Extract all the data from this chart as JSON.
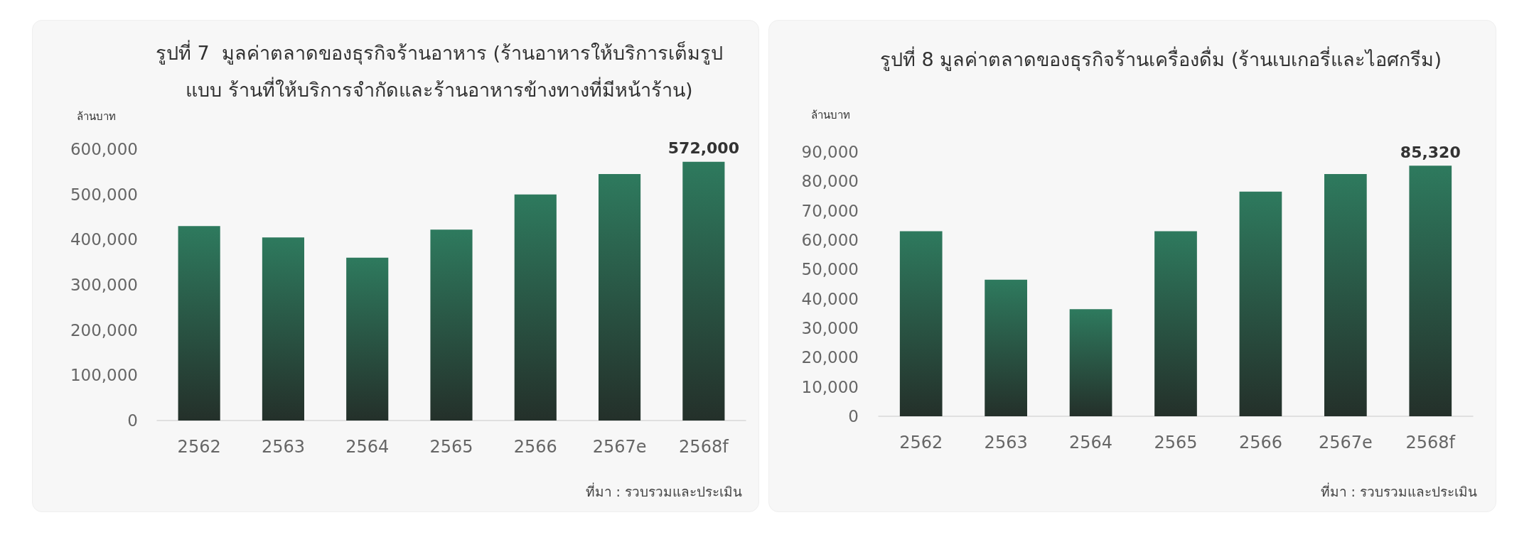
{
  "chart_data": [
    {
      "type": "bar",
      "title": "รูปที่ 7  มูลค่าตลาดของธุรกิจร้านอาหาร (ร้านอาหารให้บริการเต็มรูปแบบ ร้านที่ให้บริการจำกัดและร้านอาหารข้างทางที่มีหน้าร้าน)",
      "ylabel": "ล้านบาท",
      "categories": [
        "2562",
        "2563",
        "2564",
        "2565",
        "2566",
        "2567e",
        "2568f"
      ],
      "values": [
        430000,
        405000,
        360000,
        422000,
        500000,
        545000,
        572000
      ],
      "value_labels": [
        null,
        null,
        null,
        null,
        null,
        null,
        "572,000"
      ],
      "color": "#2e7a5e",
      "ylim": [
        0,
        600000
      ],
      "yticks": [
        0,
        {
          "value": 100000,
          "label": "100,000"
        },
        {
          "value": 200000,
          "label": "200,000"
        },
        {
          "value": 300000,
          "label": "300,000"
        },
        {
          "value": 400000,
          "label": "400,000"
        },
        {
          "value": 500000,
          "label": "500,000"
        },
        {
          "value": 600000,
          "label": "600,000"
        }
      ],
      "annotations": [
        "ที่มา : รวบรวมและประเมิน"
      ]
    },
    {
      "type": "bar",
      "title": "รูปที่ 8 มูลค่าตลาดของธุรกิจร้านเครื่องดื่ม (ร้านเบเกอรี่และไอศกรีม)",
      "ylabel": "ล้านบาท",
      "categories": [
        "2562",
        "2563",
        "2564",
        "2565",
        "2566",
        "2567e",
        "2568f"
      ],
      "values": [
        63000,
        46500,
        36500,
        63000,
        76500,
        82500,
        85320
      ],
      "value_labels": [
        null,
        null,
        null,
        null,
        null,
        null,
        "85,320"
      ],
      "color": "#2e7a5e",
      "ylim": [
        0,
        90000
      ],
      "yticks": [
        0,
        {
          "value": 10000,
          "label": "10,000"
        },
        {
          "value": 20000,
          "label": "20,000"
        },
        {
          "value": 30000,
          "label": "30,000"
        },
        {
          "value": 40000,
          "label": "40,000"
        },
        {
          "value": 50000,
          "label": "50,000"
        },
        {
          "value": 60000,
          "label": "60,000"
        },
        {
          "value": 70000,
          "label": "70,000"
        },
        {
          "value": 80000,
          "label": "80,000"
        },
        {
          "value": 90000,
          "label": "90,000"
        }
      ],
      "annotations": [
        "ที่มา : รวบรวมและประเมิน"
      ]
    }
  ]
}
